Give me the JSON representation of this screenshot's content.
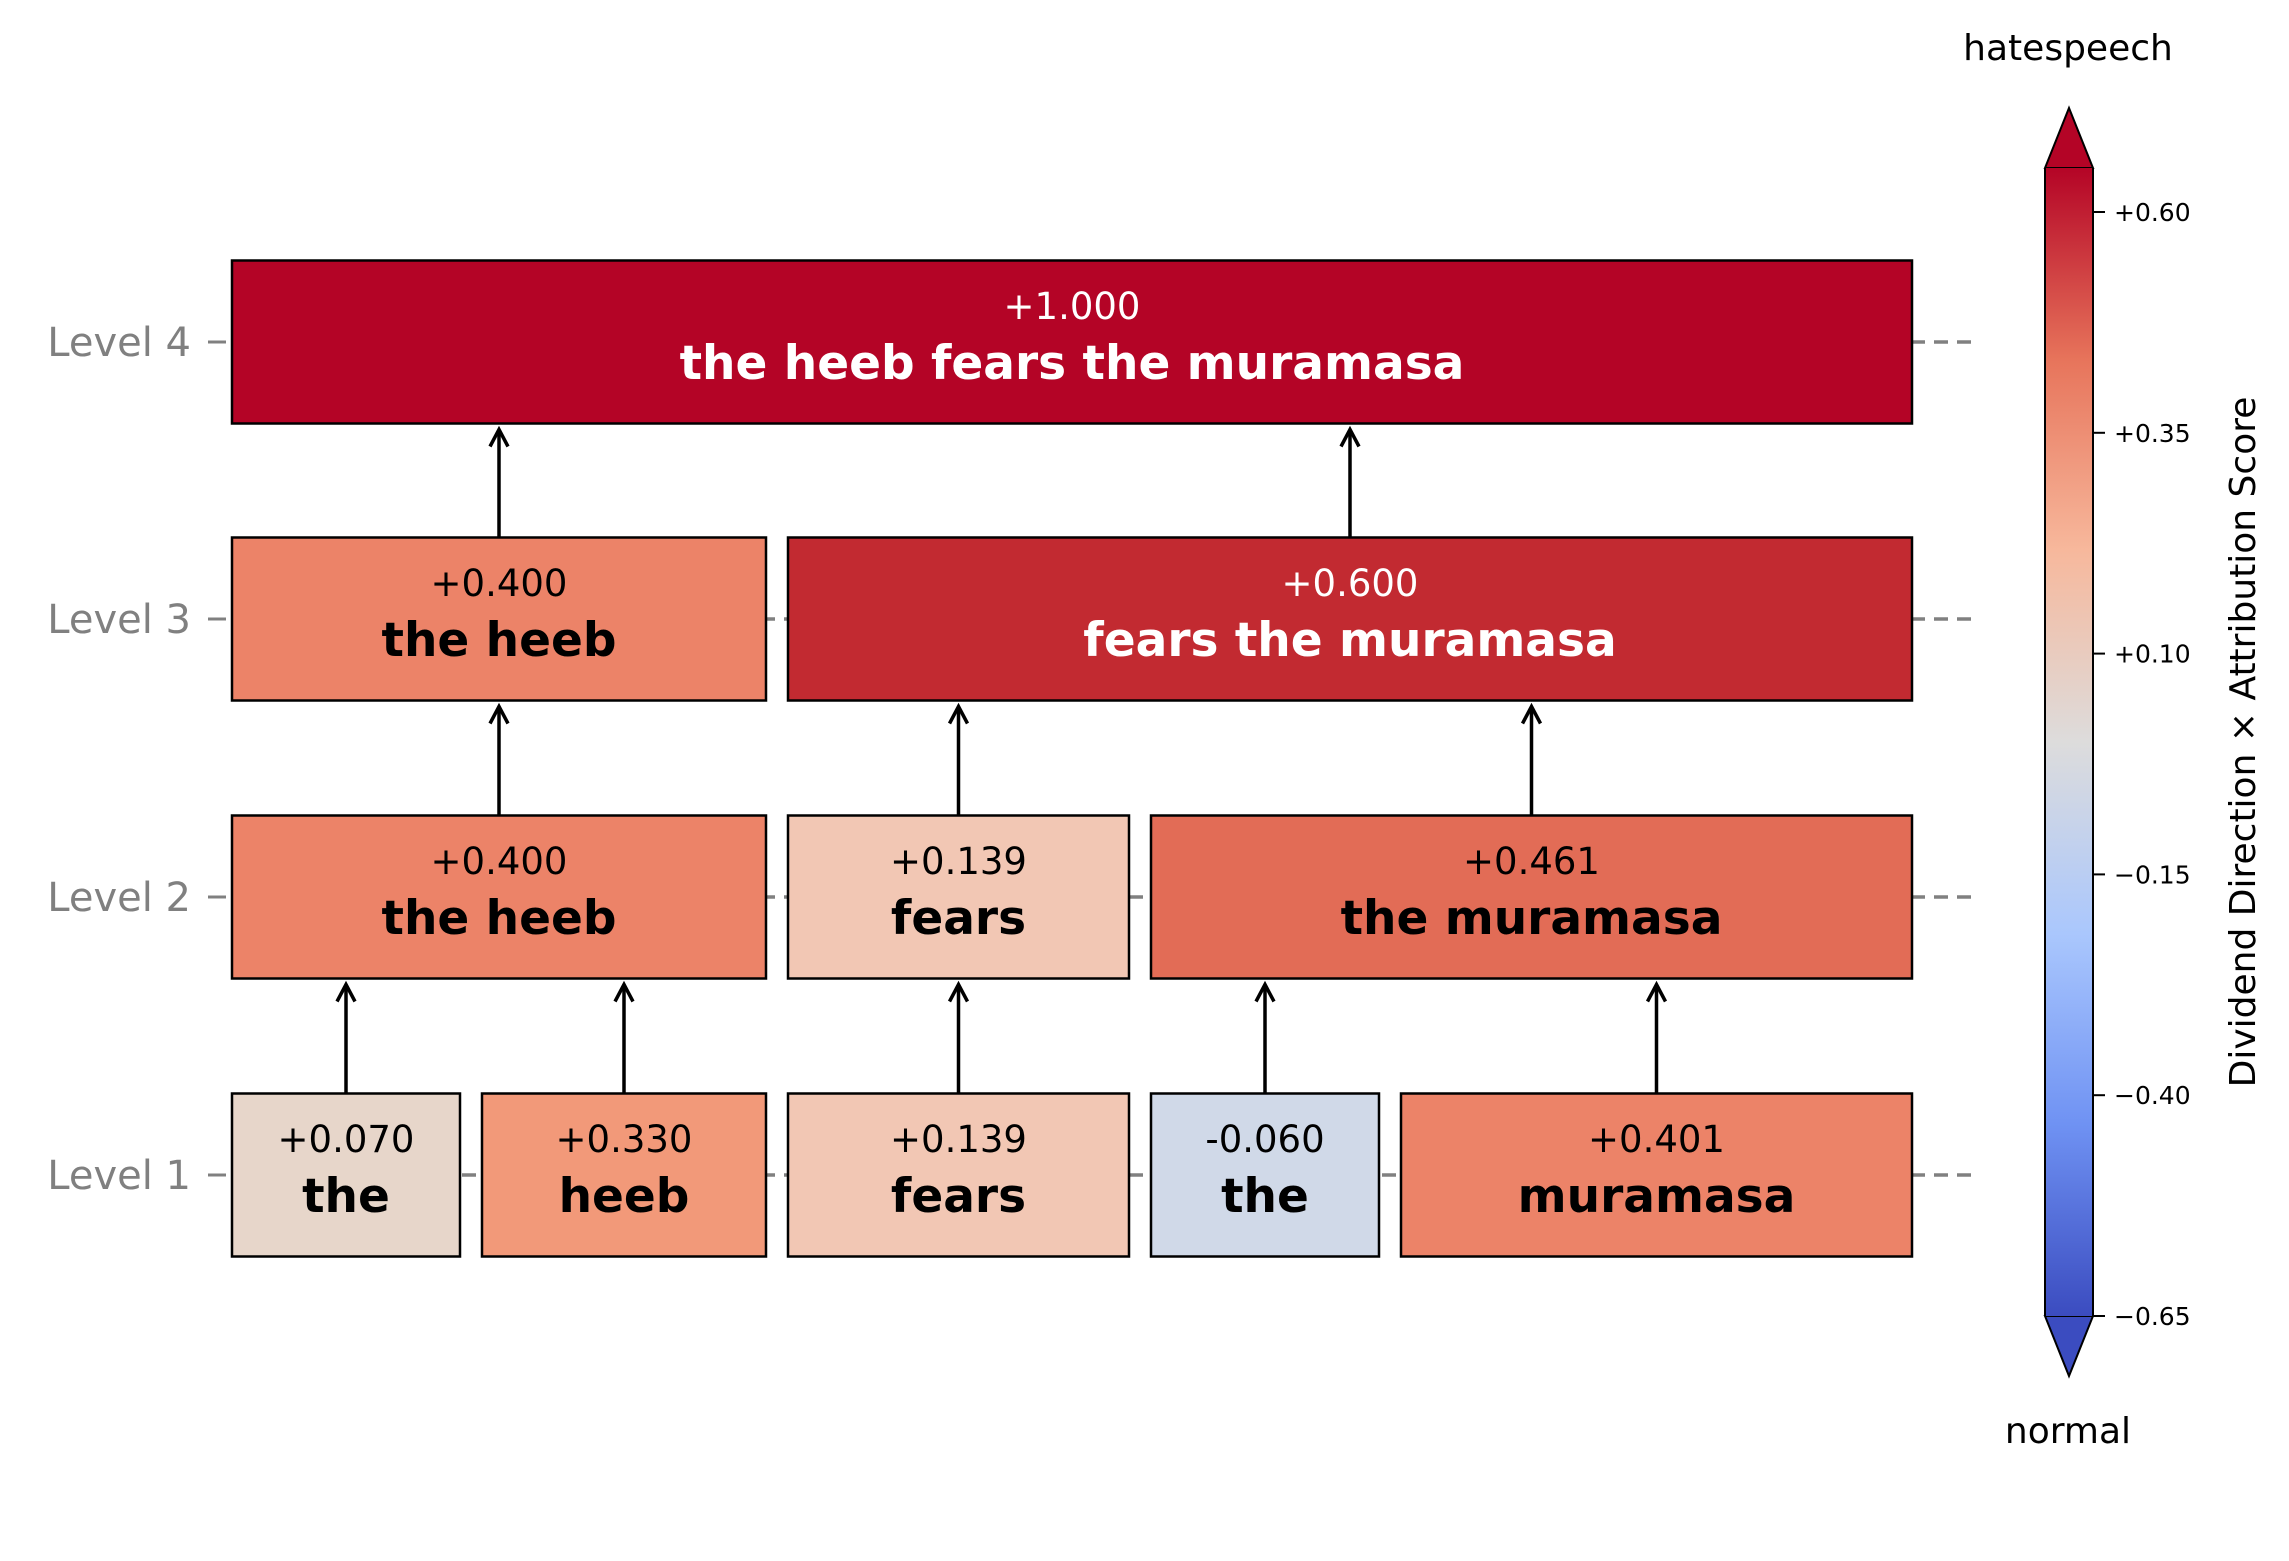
{
  "levels": [
    {
      "label": "Level 1",
      "level": 1
    },
    {
      "label": "Level 2",
      "level": 2
    },
    {
      "label": "Level 3",
      "level": 3
    },
    {
      "label": "Level 4",
      "level": 4
    }
  ],
  "nodes": [
    {
      "id": "l1-the-1",
      "level": 1,
      "tokens": [
        0,
        0
      ],
      "score_label": "+0.070",
      "text": "the",
      "fill": "#e7d6ca",
      "text_color": "#000000"
    },
    {
      "id": "l1-heeb",
      "level": 1,
      "tokens": [
        1,
        1
      ],
      "score_label": "+0.330",
      "text": "heeb",
      "fill": "#f29979",
      "text_color": "#000000"
    },
    {
      "id": "l1-fears",
      "level": 1,
      "tokens": [
        2,
        2
      ],
      "score_label": "+0.139",
      "text": "fears",
      "fill": "#f2c7b4",
      "text_color": "#000000"
    },
    {
      "id": "l1-the-2",
      "level": 1,
      "tokens": [
        3,
        3
      ],
      "score_label": "-0.060",
      "text": "the",
      "fill": "#d0d9e8",
      "text_color": "#000000"
    },
    {
      "id": "l1-muramasa",
      "level": 1,
      "tokens": [
        4,
        4
      ],
      "score_label": "+0.401",
      "text": "muramasa",
      "fill": "#ec8368",
      "text_color": "#000000"
    },
    {
      "id": "l2-the-heeb",
      "level": 2,
      "tokens": [
        0,
        1
      ],
      "score_label": "+0.400",
      "text": "the heeb",
      "fill": "#ec8368",
      "text_color": "#000000"
    },
    {
      "id": "l2-fears",
      "level": 2,
      "tokens": [
        2,
        2
      ],
      "score_label": "+0.139",
      "text": "fears",
      "fill": "#f2c7b4",
      "text_color": "#000000"
    },
    {
      "id": "l2-the-muramasa",
      "level": 2,
      "tokens": [
        3,
        4
      ],
      "score_label": "+0.461",
      "text": "the muramasa",
      "fill": "#e26c56",
      "text_color": "#000000"
    },
    {
      "id": "l3-the-heeb",
      "level": 3,
      "tokens": [
        0,
        1
      ],
      "score_label": "+0.400",
      "text": "the heeb",
      "fill": "#ec8368",
      "text_color": "#000000"
    },
    {
      "id": "l3-fears-the-muramasa",
      "level": 3,
      "tokens": [
        2,
        4
      ],
      "score_label": "+0.600",
      "text": "fears the muramasa",
      "fill": "#c22a31",
      "text_color": "#ffffff"
    },
    {
      "id": "l4-full",
      "level": 4,
      "tokens": [
        0,
        4
      ],
      "score_label": "+1.000",
      "text": "the heeb fears the muramasa",
      "fill": "#b40426",
      "text_color": "#ffffff"
    }
  ],
  "edges": [
    {
      "from": "l1-the-1",
      "to": "l2-the-heeb"
    },
    {
      "from": "l1-heeb",
      "to": "l2-the-heeb"
    },
    {
      "from": "l1-fears",
      "to": "l2-fears"
    },
    {
      "from": "l1-the-2",
      "to": "l2-the-muramasa"
    },
    {
      "from": "l1-muramasa",
      "to": "l2-the-muramasa"
    },
    {
      "from": "l2-the-heeb",
      "to": "l3-the-heeb"
    },
    {
      "from": "l2-fears",
      "to": "l3-fears-the-muramasa"
    },
    {
      "from": "l2-the-muramasa",
      "to": "l3-fears-the-muramasa"
    },
    {
      "from": "l3-the-heeb",
      "to": "l4-full"
    },
    {
      "from": "l3-fears-the-muramasa",
      "to": "l4-full"
    }
  ],
  "colorbar": {
    "label": "Dividend Direction × Attribution Score",
    "top_label": "hatespeech",
    "bottom_label": "normal",
    "ticks": [
      "+0.60",
      "+0.35",
      "+0.10",
      "−0.15",
      "−0.40",
      "−0.65"
    ],
    "tick_values": [
      0.6,
      0.35,
      0.1,
      -0.15,
      -0.4,
      -0.65
    ],
    "range": [
      -0.65,
      0.6
    ],
    "extend": "both",
    "colormap": "coolwarm",
    "stops": [
      "#3b4cc0",
      "#6f92f3",
      "#aac7fd",
      "#dddcdc",
      "#f7b89c",
      "#e7745b",
      "#b40426"
    ]
  }
}
